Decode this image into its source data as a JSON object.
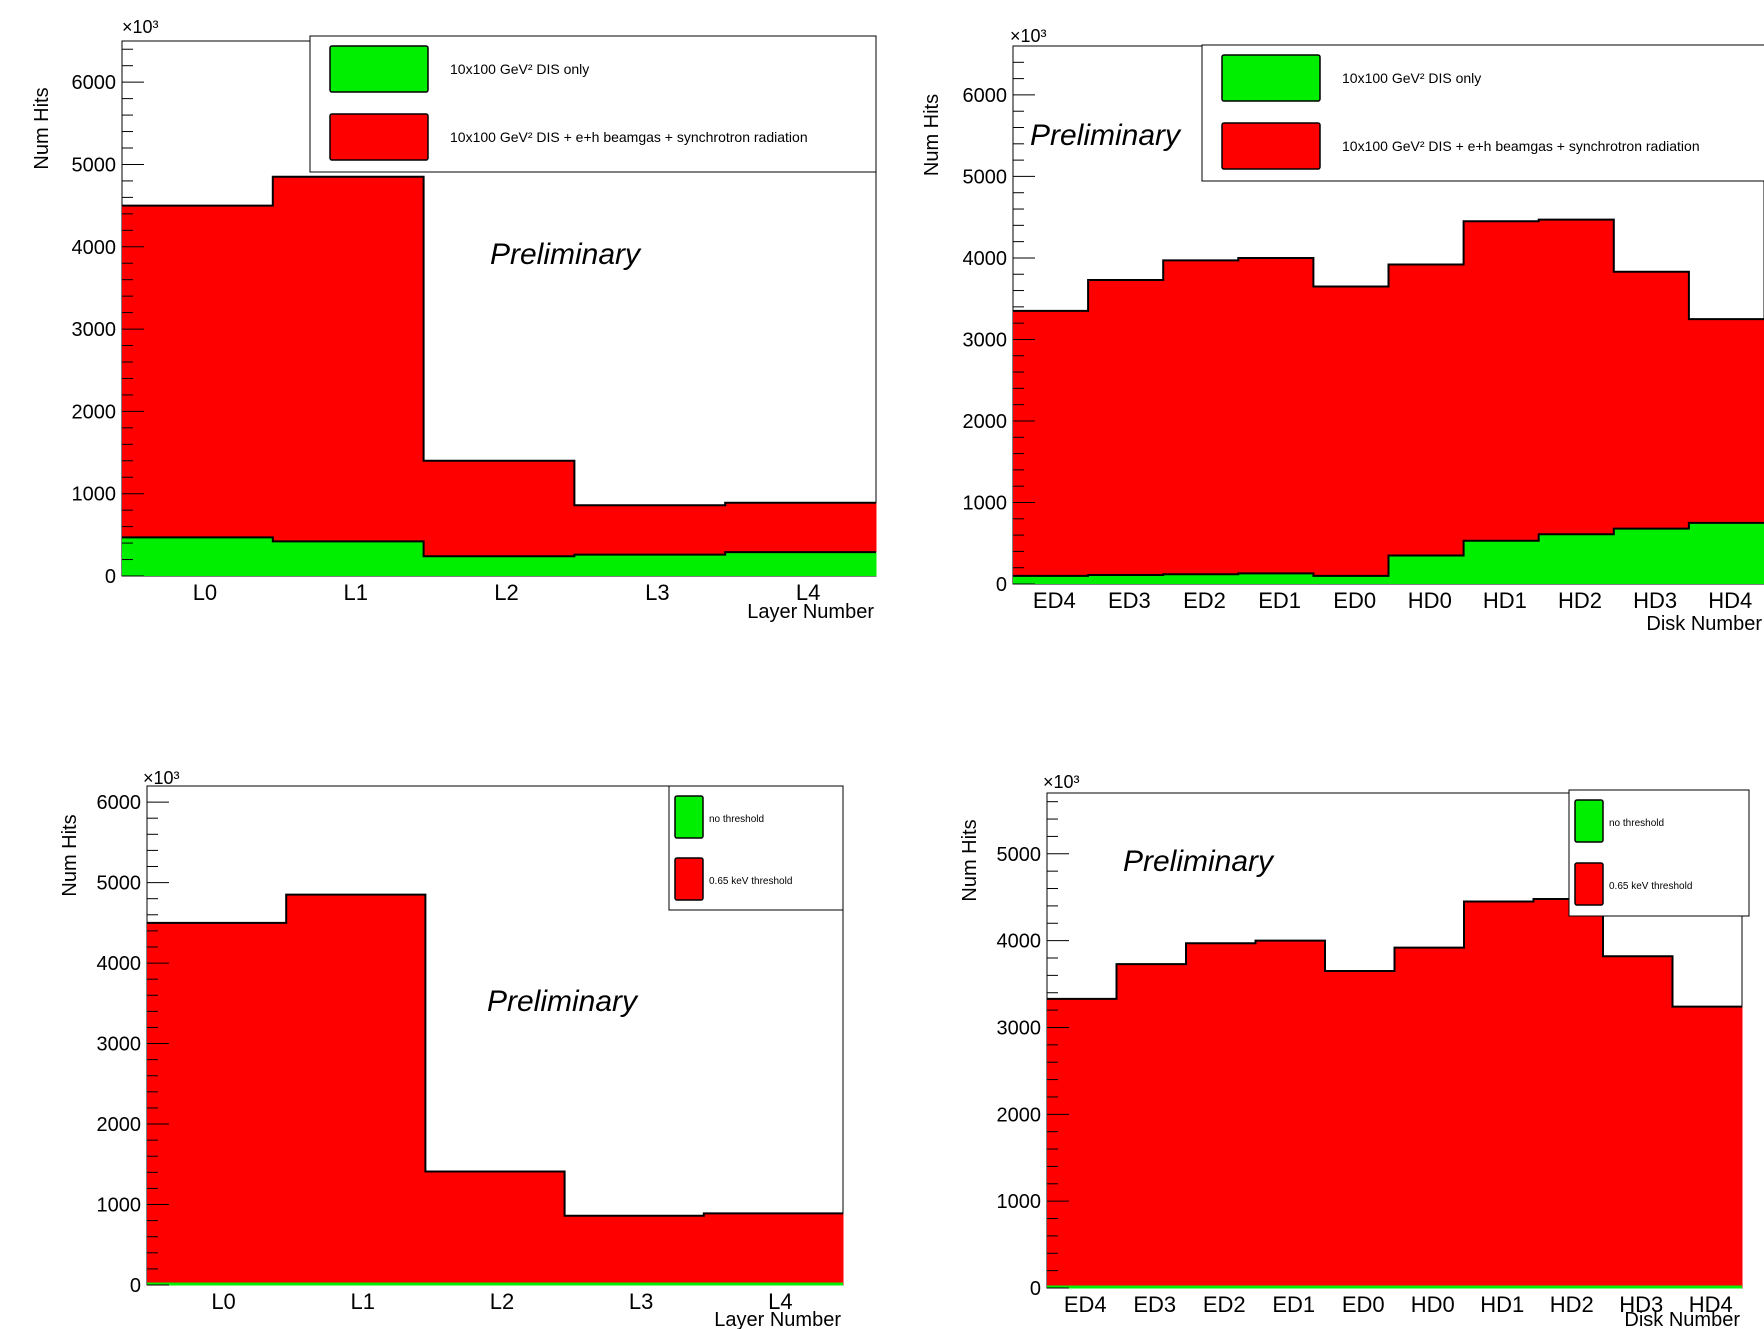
{
  "chart_data": [
    {
      "type": "bar",
      "categories": [
        "L0",
        "L1",
        "L2",
        "L3",
        "L4"
      ],
      "ylabel": "Num Hits",
      "xlabel": "Layer Number",
      "y_exponent": "×10³",
      "yticks": [
        "0",
        "1000",
        "2000",
        "3000",
        "4000",
        "5000",
        "6000"
      ],
      "ylim": [
        0,
        6500
      ],
      "annotation": "Preliminary",
      "legend": {
        "position": "top-right"
      },
      "series": [
        {
          "name": "10x100 GeV² DIS + e+h beamgas + synchrotron radiation",
          "color": "#ff0000",
          "values": [
            4500,
            4850,
            1400,
            860,
            890
          ]
        },
        {
          "name": "10x100 GeV² DIS only",
          "color": "#00ee00",
          "values": [
            470,
            420,
            240,
            260,
            290
          ]
        }
      ]
    },
    {
      "type": "bar",
      "categories": [
        "ED4",
        "ED3",
        "ED2",
        "ED1",
        "ED0",
        "HD0",
        "HD1",
        "HD2",
        "HD3",
        "HD4"
      ],
      "ylabel": "Num Hits",
      "xlabel": "Disk Number",
      "y_exponent": "×10³",
      "yticks": [
        "0",
        "1000",
        "2000",
        "3000",
        "4000",
        "5000",
        "6000"
      ],
      "ylim": [
        0,
        6600
      ],
      "annotation": "Preliminary",
      "legend": {
        "position": "top-right"
      },
      "series": [
        {
          "name": "10x100 GeV² DIS + e+h beamgas + synchrotron radiation",
          "color": "#ff0000",
          "values": [
            3350,
            3730,
            3970,
            4000,
            3650,
            3920,
            4450,
            4470,
            3830,
            3250
          ]
        },
        {
          "name": "10x100 GeV² DIS only",
          "color": "#00ee00",
          "values": [
            100,
            110,
            120,
            130,
            100,
            350,
            530,
            610,
            680,
            750
          ]
        }
      ]
    },
    {
      "type": "bar",
      "categories": [
        "L0",
        "L1",
        "L2",
        "L3",
        "L4"
      ],
      "ylabel": "Num Hits",
      "xlabel": "Layer Number",
      "y_exponent": "×10³",
      "yticks": [
        "0",
        "1000",
        "2000",
        "3000",
        "4000",
        "5000",
        "6000"
      ],
      "ylim": [
        0,
        6200
      ],
      "annotation": "Preliminary",
      "legend": {
        "position": "top-right"
      },
      "series": [
        {
          "name": "0.65 keV threshold",
          "color": "#ff0000",
          "values": [
            4500,
            4850,
            1410,
            860,
            890
          ]
        },
        {
          "name": "no threshold",
          "color": "#00ee00",
          "values": [
            0,
            0,
            0,
            0,
            0
          ]
        }
      ]
    },
    {
      "type": "bar",
      "categories": [
        "ED4",
        "ED3",
        "ED2",
        "ED1",
        "ED0",
        "HD0",
        "HD1",
        "HD2",
        "HD3",
        "HD4"
      ],
      "ylabel": "Num Hits",
      "xlabel": "Disk Number",
      "y_exponent": "×10³",
      "yticks": [
        "0",
        "1000",
        "2000",
        "3000",
        "4000",
        "5000"
      ],
      "ylim": [
        0,
        5700
      ],
      "annotation": "Preliminary",
      "legend": {
        "position": "top-right"
      },
      "series": [
        {
          "name": "0.65 keV threshold",
          "color": "#ff0000",
          "values": [
            3330,
            3730,
            3970,
            4000,
            3650,
            3920,
            4450,
            4480,
            3820,
            3240
          ]
        },
        {
          "name": "no threshold",
          "color": "#00ee00",
          "values": [
            0,
            0,
            0,
            0,
            0,
            0,
            0,
            0,
            0,
            0
          ]
        }
      ]
    }
  ]
}
